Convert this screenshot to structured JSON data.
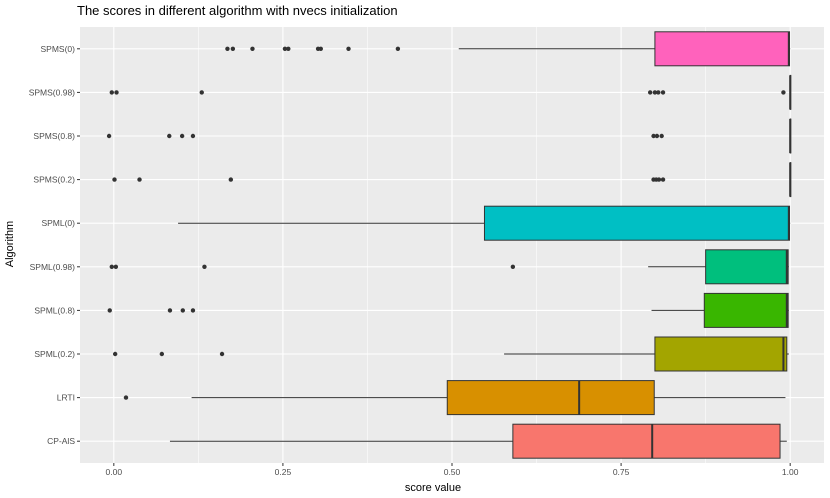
{
  "chart_data": {
    "type": "boxplot",
    "orientation": "horizontal",
    "title": "The scores in different algorithm with nvecs initialization",
    "xlabel": "score value",
    "ylabel": "Algorithm",
    "xlim": [
      -0.05,
      1.05
    ],
    "x_ticks": [
      0,
      0.25,
      0.5,
      0.75,
      1
    ],
    "x_tick_labels": [
      "0.00",
      "0.25",
      "0.50",
      "0.75",
      "1.00"
    ],
    "grid": true,
    "legend": "none",
    "categories": [
      "CP-AlS",
      "LRTI",
      "SPML(0.2)",
      "SPML(0.8)",
      "SPML(0.98)",
      "SPML(0)",
      "SPMS(0.2)",
      "SPMS(0.8)",
      "SPMS(0.98)",
      "SPMS(0)"
    ],
    "series": [
      {
        "category": "CP-AlS",
        "color": "#F8766D",
        "whisker_low": 0.083,
        "q1": 0.59,
        "median": 0.796,
        "q3": 0.985,
        "whisker_high": 0.995,
        "outliers": []
      },
      {
        "category": "LRTI",
        "color": "#D89000",
        "whisker_low": 0.115,
        "q1": 0.493,
        "median": 0.688,
        "q3": 0.799,
        "whisker_high": 0.993,
        "outliers": [
          0.018
        ]
      },
      {
        "category": "SPML(0.2)",
        "color": "#A3A500",
        "whisker_low": 0.577,
        "q1": 0.8,
        "median": 0.99,
        "q3": 0.995,
        "whisker_high": 0.998,
        "outliers": [
          0.002,
          0.071,
          0.16
        ]
      },
      {
        "category": "SPML(0.8)",
        "color": "#39B600",
        "whisker_low": 0.795,
        "q1": 0.873,
        "median": 0.995,
        "q3": 0.997,
        "whisker_high": 0.998,
        "outliers": [
          -0.006,
          0.083,
          0.102,
          0.117
        ]
      },
      {
        "category": "SPML(0.98)",
        "color": "#00BF7D",
        "whisker_low": 0.79,
        "q1": 0.875,
        "median": 0.995,
        "q3": 0.997,
        "whisker_high": 0.998,
        "outliers": [
          -0.003,
          0.003,
          0.134,
          0.59
        ]
      },
      {
        "category": "SPML(0)",
        "color": "#00BFC4",
        "whisker_low": 0.095,
        "q1": 0.548,
        "median": 0.998,
        "q3": 0.999,
        "whisker_high": 1.0,
        "outliers": []
      },
      {
        "category": "SPMS(0.2)",
        "color": "#00B0F6",
        "whisker_low": 1.0,
        "q1": 1.0,
        "median": 1.0,
        "q3": 1.0,
        "whisker_high": 1.0,
        "outliers": [
          0.001,
          0.038,
          0.173,
          0.798,
          0.802,
          0.806,
          0.812
        ]
      },
      {
        "category": "SPMS(0.8)",
        "color": "#9590FF",
        "whisker_low": 1.0,
        "q1": 1.0,
        "median": 1.0,
        "q3": 1.0,
        "whisker_high": 1.0,
        "outliers": [
          -0.007,
          0.082,
          0.101,
          0.117,
          0.798,
          0.803,
          0.81
        ]
      },
      {
        "category": "SPMS(0.98)",
        "color": "#E76BF3",
        "whisker_low": 1.0,
        "q1": 1.0,
        "median": 1.0,
        "q3": 1.0,
        "whisker_high": 1.0,
        "outliers": [
          -0.003,
          0.004,
          0.13,
          0.793,
          0.8,
          0.805,
          0.812,
          0.99
        ]
      },
      {
        "category": "SPMS(0)",
        "color": "#FF62BC",
        "whisker_low": 0.51,
        "q1": 0.8,
        "median": 0.998,
        "q3": 0.999,
        "whisker_high": 1.0,
        "outliers": [
          0.168,
          0.176,
          0.205,
          0.253,
          0.258,
          0.302,
          0.306,
          0.347,
          0.42
        ]
      }
    ]
  }
}
